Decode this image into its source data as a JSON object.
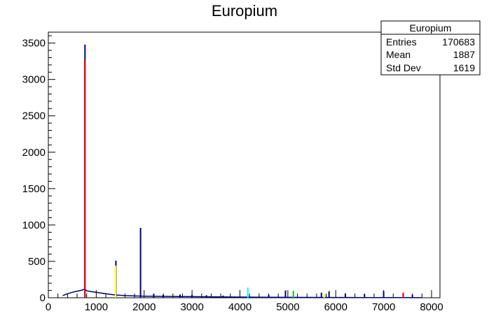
{
  "chart_data": {
    "type": "histogram",
    "title": "Europium",
    "xlim": [
      0,
      8200
    ],
    "ylim": [
      0,
      3650
    ],
    "x_ticks": [
      0,
      1000,
      2000,
      3000,
      4000,
      5000,
      6000,
      7000,
      8000
    ],
    "y_ticks": [
      0,
      500,
      1000,
      1500,
      2000,
      2500,
      3000,
      3500
    ],
    "x_tick_labels": [
      "0",
      "1000",
      "2000",
      "3000",
      "4000",
      "5000",
      "6000",
      "7000",
      "8000"
    ],
    "y_tick_labels": [
      "0",
      "500",
      "1000",
      "1500",
      "2000",
      "2500",
      "3000",
      "3500"
    ],
    "grid": false,
    "stats_box": {
      "title": "Europium",
      "rows": [
        {
          "label": "Entries",
          "value": "170683"
        },
        {
          "label": "Mean",
          "value": "1887"
        },
        {
          "label": "Std Dev",
          "value": "1619"
        }
      ]
    },
    "line_color": "#000080",
    "background": [
      {
        "x": 300,
        "y": 30
      },
      {
        "x": 400,
        "y": 55
      },
      {
        "x": 500,
        "y": 75
      },
      {
        "x": 600,
        "y": 90
      },
      {
        "x": 700,
        "y": 105
      },
      {
        "x": 760,
        "y": 120
      },
      {
        "x": 800,
        "y": 95
      },
      {
        "x": 900,
        "y": 85
      },
      {
        "x": 1000,
        "y": 75
      },
      {
        "x": 1100,
        "y": 65
      },
      {
        "x": 1200,
        "y": 55
      },
      {
        "x": 1300,
        "y": 45
      },
      {
        "x": 1400,
        "y": 38
      },
      {
        "x": 1600,
        "y": 30
      },
      {
        "x": 1800,
        "y": 25
      },
      {
        "x": 2000,
        "y": 22
      },
      {
        "x": 2500,
        "y": 18
      },
      {
        "x": 3000,
        "y": 15
      },
      {
        "x": 3500,
        "y": 12
      },
      {
        "x": 4000,
        "y": 10
      },
      {
        "x": 4500,
        "y": 8
      },
      {
        "x": 5000,
        "y": 6
      },
      {
        "x": 5500,
        "y": 5
      },
      {
        "x": 6000,
        "y": 4
      },
      {
        "x": 6500,
        "y": 3
      },
      {
        "x": 7000,
        "y": 2
      },
      {
        "x": 7500,
        "y": 2
      },
      {
        "x": 7800,
        "y": 1
      }
    ],
    "peaks": [
      {
        "x": 765,
        "y": 3480,
        "color": "#000080"
      },
      {
        "x": 760,
        "y": 3270,
        "color": "#ff0000"
      },
      {
        "x": 1410,
        "y": 510,
        "color": "#000080"
      },
      {
        "x": 1405,
        "y": 440,
        "color": "#ffff00"
      },
      {
        "x": 1925,
        "y": 960,
        "color": "#000080"
      },
      {
        "x": 2200,
        "y": 55,
        "color": "#000080"
      },
      {
        "x": 2400,
        "y": 40,
        "color": "#000080"
      },
      {
        "x": 2750,
        "y": 45,
        "color": "#000080"
      },
      {
        "x": 3000,
        "y": 40,
        "color": "#000080"
      },
      {
        "x": 3300,
        "y": 35,
        "color": "#000080"
      },
      {
        "x": 3650,
        "y": 30,
        "color": "#000080"
      },
      {
        "x": 4165,
        "y": 140,
        "color": "#00ffff"
      },
      {
        "x": 4600,
        "y": 40,
        "color": "#000080"
      },
      {
        "x": 4950,
        "y": 100,
        "color": "#000080"
      },
      {
        "x": 5115,
        "y": 95,
        "color": "#00cc00"
      },
      {
        "x": 5700,
        "y": 70,
        "color": "#000080"
      },
      {
        "x": 5760,
        "y": 50,
        "color": "#ffff00"
      },
      {
        "x": 5860,
        "y": 90,
        "color": "#000080"
      },
      {
        "x": 6200,
        "y": 60,
        "color": "#000080"
      },
      {
        "x": 6600,
        "y": 50,
        "color": "#000080"
      },
      {
        "x": 7000,
        "y": 90,
        "color": "#000080"
      },
      {
        "x": 7410,
        "y": 70,
        "color": "#ff0000"
      },
      {
        "x": 7600,
        "y": 40,
        "color": "#000080"
      }
    ]
  }
}
